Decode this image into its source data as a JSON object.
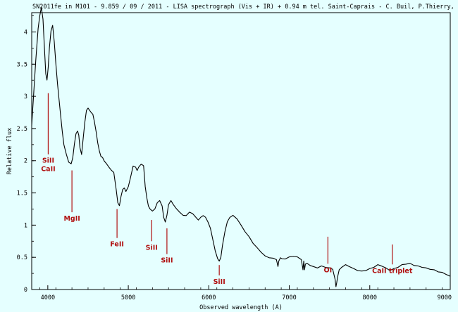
{
  "chart_data": {
    "type": "line",
    "title": "SN2011fe in M101 - 9.859 / 09 / 2011 - LISA spectrograph (Vis + IR) + 0.94 m tel. Saint-Caprais - C. Buil, P.Thierry, Y. Rieugne",
    "xlabel": "Observed wavelength (A)",
    "ylabel": "Relative flux",
    "xlim": [
      3800,
      9000
    ],
    "ylim": [
      0,
      4.3
    ],
    "xticks": [
      4000,
      5000,
      6000,
      7000,
      8000,
      9000
    ],
    "yticks": [
      0,
      0.5,
      1,
      1.5,
      2,
      2.5,
      3,
      3.5,
      4
    ],
    "grid": false,
    "line_color": "#000000",
    "annotation_color": "#b01010",
    "series": [
      {
        "x": [
          3800,
          3820,
          3850,
          3880,
          3900,
          3920,
          3940,
          3960,
          3975,
          3990,
          4005,
          4020,
          4040,
          4060,
          4080,
          4100,
          4120,
          4140,
          4160,
          4180,
          4200,
          4230,
          4260,
          4290,
          4310,
          4330,
          4350,
          4370,
          4385,
          4400,
          4420,
          4440,
          4460,
          4480,
          4500,
          4520,
          4540,
          4560,
          4580,
          4600,
          4620,
          4640,
          4660,
          4680,
          4700,
          4730,
          4760,
          4790,
          4820,
          4850,
          4870,
          4890,
          4910,
          4930,
          4950,
          4970,
          5000,
          5030,
          5060,
          5090,
          5110,
          5130,
          5160,
          5190,
          5210,
          5230,
          5250,
          5270,
          5300,
          5330,
          5360,
          5390,
          5420,
          5440,
          5460,
          5480,
          5500,
          5530,
          5560,
          5600,
          5640,
          5680,
          5720,
          5760,
          5800,
          5840,
          5870,
          5900,
          5930,
          5960,
          5990,
          6020,
          6050,
          6080,
          6110,
          6130,
          6150,
          6170,
          6200,
          6230,
          6260,
          6300,
          6350,
          6400,
          6450,
          6500,
          6550,
          6600,
          6650,
          6700,
          6750,
          6800,
          6840,
          6860,
          6870,
          6880,
          6890,
          6910,
          6950,
          7000,
          7050,
          7100,
          7150,
          7170,
          7180,
          7190,
          7200,
          7220,
          7260,
          7300,
          7350,
          7400,
          7450,
          7500,
          7540,
          7570,
          7580,
          7590,
          7600,
          7620,
          7650,
          7700,
          7750,
          7800,
          7850,
          7900,
          7950,
          8000,
          8050,
          8100,
          8150,
          8200,
          8250,
          8300,
          8350,
          8400,
          8450,
          8500,
          8550,
          8600,
          8650,
          8700,
          8750,
          8800,
          8850,
          8900,
          8950,
          9000
        ],
        "y": [
          2.55,
          2.95,
          3.55,
          4.05,
          4.25,
          4.38,
          4.2,
          3.7,
          3.35,
          3.25,
          3.45,
          3.75,
          4.02,
          4.1,
          3.85,
          3.5,
          3.2,
          2.95,
          2.7,
          2.45,
          2.25,
          2.1,
          1.98,
          1.95,
          2.05,
          2.25,
          2.42,
          2.46,
          2.4,
          2.2,
          2.1,
          2.35,
          2.6,
          2.78,
          2.82,
          2.78,
          2.75,
          2.72,
          2.6,
          2.45,
          2.28,
          2.15,
          2.07,
          2.05,
          2.0,
          1.95,
          1.9,
          1.85,
          1.82,
          1.55,
          1.35,
          1.3,
          1.45,
          1.55,
          1.58,
          1.52,
          1.6,
          1.75,
          1.92,
          1.9,
          1.85,
          1.9,
          1.95,
          1.92,
          1.6,
          1.42,
          1.3,
          1.25,
          1.22,
          1.25,
          1.35,
          1.38,
          1.3,
          1.12,
          1.05,
          1.15,
          1.32,
          1.38,
          1.32,
          1.25,
          1.2,
          1.15,
          1.15,
          1.2,
          1.18,
          1.12,
          1.08,
          1.12,
          1.15,
          1.12,
          1.05,
          0.95,
          0.78,
          0.6,
          0.48,
          0.44,
          0.5,
          0.68,
          0.9,
          1.05,
          1.12,
          1.15,
          1.1,
          1.0,
          0.9,
          0.82,
          0.72,
          0.65,
          0.58,
          0.52,
          0.5,
          0.48,
          0.47,
          0.35,
          0.45,
          0.46,
          0.5,
          0.47,
          0.48,
          0.5,
          0.52,
          0.5,
          0.47,
          0.3,
          0.45,
          0.3,
          0.4,
          0.4,
          0.38,
          0.35,
          0.34,
          0.36,
          0.35,
          0.33,
          0.32,
          0.15,
          0.05,
          0.1,
          0.2,
          0.3,
          0.35,
          0.38,
          0.36,
          0.32,
          0.3,
          0.28,
          0.3,
          0.32,
          0.35,
          0.38,
          0.37,
          0.33,
          0.3,
          0.32,
          0.35,
          0.38,
          0.4,
          0.4,
          0.38,
          0.36,
          0.35,
          0.33,
          0.32,
          0.3,
          0.28,
          0.26,
          0.24,
          0.2
        ]
      }
    ],
    "annotations": [
      {
        "text": "SiII",
        "text2": "CaII",
        "x": 4005,
        "y0": 2.1,
        "y1": 3.05
      },
      {
        "text": "MgII",
        "text2": "",
        "x": 4300,
        "y0": 1.2,
        "y1": 1.85
      },
      {
        "text": "FeII",
        "text2": "",
        "x": 4860,
        "y0": 0.8,
        "y1": 1.25
      },
      {
        "text": "SiII",
        "text2": "",
        "x": 5290,
        "y0": 0.75,
        "y1": 1.08
      },
      {
        "text": "SiII",
        "text2": "",
        "x": 5480,
        "y0": 0.55,
        "y1": 0.95
      },
      {
        "text": "SiII",
        "text2": "",
        "x": 6130,
        "y0": 0.22,
        "y1": 0.38
      },
      {
        "text": "OI",
        "text2": "",
        "x": 7480,
        "y0": 0.4,
        "y1": 0.82
      },
      {
        "text": "CaII triplet",
        "text2": "",
        "x": 8280,
        "y0": 0.39,
        "y1": 0.7
      }
    ]
  }
}
